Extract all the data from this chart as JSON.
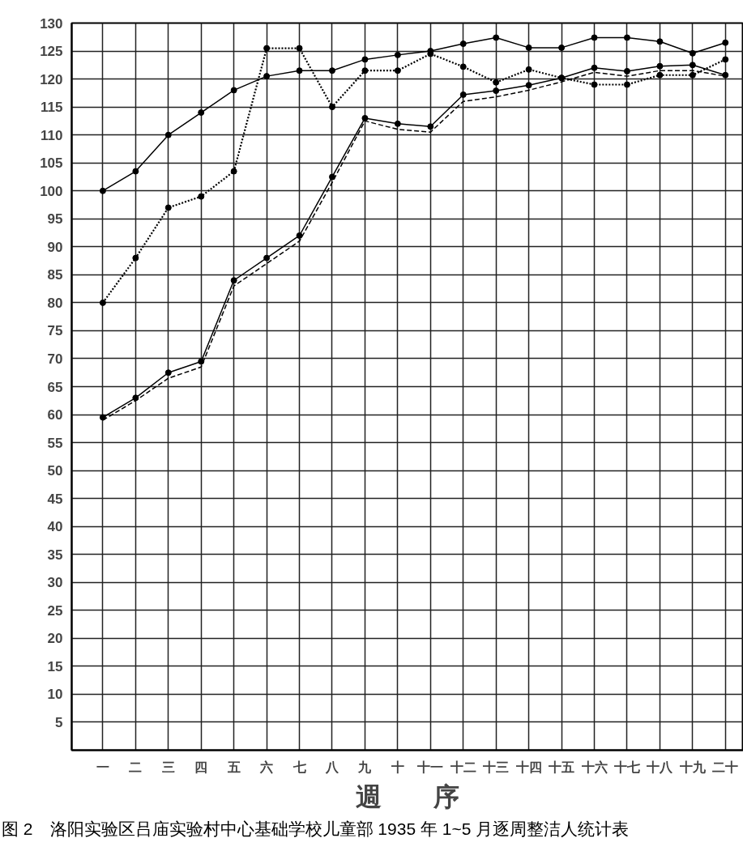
{
  "chart_data": {
    "type": "line",
    "xlabel": "週　　序",
    "categories": [
      "一",
      "二",
      "三",
      "四",
      "五",
      "六",
      "七",
      "八",
      "九",
      "十",
      "十一",
      "十二",
      "十三",
      "十四",
      "十五",
      "十六",
      "十七",
      "十八",
      "十九",
      "二十"
    ],
    "series": [
      {
        "color": "#000000",
        "marker": "circle",
        "line_style": "solid",
        "values": [
          100,
          103.5,
          110,
          114,
          118,
          120.5,
          121.5,
          121.5,
          123.5,
          124.3,
          125,
          126.3,
          127.4,
          125.6,
          125.6,
          127.4,
          127.4,
          126.7,
          124.6,
          126.5
        ]
      },
      {
        "color": "#000000",
        "marker": "circle",
        "line_style": "dotted",
        "values": [
          80,
          88,
          97,
          99,
          103.5,
          125.5,
          125.5,
          115,
          121.5,
          121.5,
          124.5,
          122.2,
          119.4,
          121.7,
          120.2,
          119,
          119,
          120.7,
          120.7,
          123.5
        ]
      },
      {
        "color": "#000000",
        "marker": "circle",
        "line_style": "solid",
        "values": [
          59.5,
          63,
          67.5,
          69.5,
          84,
          88,
          92,
          102.5,
          113,
          112,
          111.5,
          117.2,
          117.9,
          118.9,
          120.2,
          122,
          121.4,
          122.3,
          122.5,
          120.7
        ]
      },
      {
        "color": "#000000",
        "marker": "none",
        "line_style": "dashed",
        "values": [
          59,
          62.5,
          66.5,
          68.5,
          83,
          87,
          91,
          101.5,
          112.5,
          111,
          110.5,
          116,
          116.8,
          118,
          119.5,
          121.2,
          120.5,
          121.5,
          121.5,
          120.5
        ]
      }
    ],
    "ylim": [
      0,
      130
    ],
    "yticks": [
      5,
      10,
      15,
      20,
      25,
      30,
      35,
      40,
      45,
      50,
      55,
      60,
      65,
      70,
      75,
      80,
      85,
      90,
      95,
      100,
      105,
      110,
      115,
      120,
      125,
      130
    ],
    "grid": true,
    "annotations": [
      "图 2　洛阳实验区吕庙实验村中心基础学校儿童部 1935 年 1~5 月逐周整洁人统计表"
    ]
  }
}
